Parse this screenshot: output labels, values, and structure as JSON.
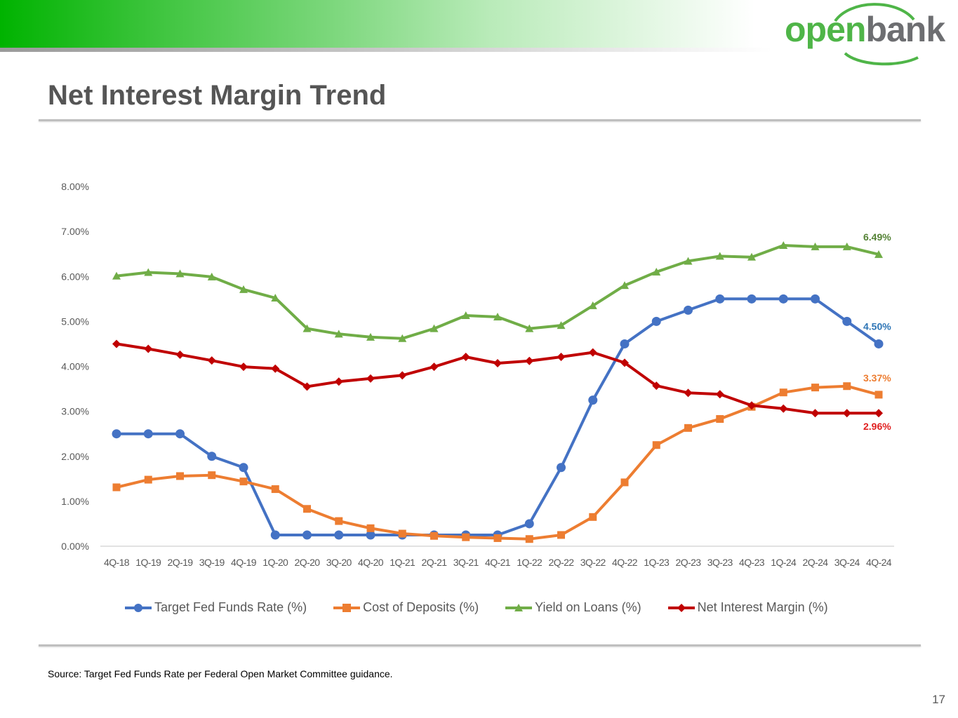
{
  "header": {
    "logo_left": "open",
    "logo_right": "bank",
    "title": "Net Interest Margin Trend"
  },
  "colors": {
    "fed": "#4472c4",
    "deposits": "#ed7d31",
    "loans": "#70ad47",
    "nim": "#c00000",
    "end_label_fed": "#2e75b6",
    "end_label_deposits": "#ed7d31",
    "end_label_loans": "#548235",
    "end_label_nim": "#e02020"
  },
  "chart_data": {
    "type": "line",
    "title": "",
    "xlabel": "",
    "ylabel": "",
    "ylim": [
      0,
      8
    ],
    "y_ticks": [
      "0.00%",
      "1.00%",
      "2.00%",
      "3.00%",
      "4.00%",
      "5.00%",
      "6.00%",
      "7.00%",
      "8.00%"
    ],
    "grid": false,
    "categories": [
      "4Q-18",
      "1Q-19",
      "2Q-19",
      "3Q-19",
      "4Q-19",
      "1Q-20",
      "2Q-20",
      "3Q-20",
      "4Q-20",
      "1Q-21",
      "2Q-21",
      "3Q-21",
      "4Q-21",
      "1Q-22",
      "2Q-22",
      "3Q-22",
      "4Q-22",
      "1Q-23",
      "2Q-23",
      "3Q-23",
      "4Q-23",
      "1Q-24",
      "2Q-24",
      "3Q-24",
      "4Q-24"
    ],
    "series": [
      {
        "name": "Target Fed Funds Rate (%)",
        "key": "fed",
        "marker": "circle",
        "values": [
          2.5,
          2.5,
          2.5,
          2.0,
          1.75,
          0.25,
          0.25,
          0.25,
          0.25,
          0.25,
          0.25,
          0.25,
          0.25,
          0.5,
          1.75,
          3.25,
          4.5,
          5.0,
          5.25,
          5.5,
          5.5,
          5.5,
          5.5,
          5.0,
          4.5
        ],
        "end_label": "4.50%"
      },
      {
        "name": "Cost of Deposits (%)",
        "key": "deposits",
        "marker": "square",
        "values": [
          1.31,
          1.48,
          1.56,
          1.58,
          1.44,
          1.27,
          0.83,
          0.56,
          0.4,
          0.28,
          0.23,
          0.2,
          0.18,
          0.16,
          0.25,
          0.65,
          1.42,
          2.25,
          2.63,
          2.83,
          3.1,
          3.42,
          3.53,
          3.56,
          3.37
        ],
        "end_label": "3.37%"
      },
      {
        "name": "Yield on Loans (%)",
        "key": "loans",
        "marker": "triangle",
        "values": [
          6.01,
          6.09,
          6.06,
          5.99,
          5.71,
          5.52,
          4.84,
          4.72,
          4.65,
          4.62,
          4.84,
          5.13,
          5.1,
          4.84,
          4.91,
          5.35,
          5.8,
          6.1,
          6.34,
          6.45,
          6.43,
          6.69,
          6.66,
          6.66,
          6.49
        ],
        "end_label": "6.49%"
      },
      {
        "name": "Net Interest Margin (%)",
        "key": "nim",
        "marker": "diamond",
        "values": [
          4.5,
          4.39,
          4.26,
          4.13,
          3.99,
          3.95,
          3.55,
          3.66,
          3.73,
          3.8,
          3.99,
          4.21,
          4.07,
          4.12,
          4.21,
          4.31,
          4.08,
          3.57,
          3.41,
          3.38,
          3.13,
          3.06,
          2.96,
          2.96,
          2.96
        ],
        "end_label": "2.96%"
      }
    ],
    "legend_position": "bottom"
  },
  "footer": {
    "source": "Source: Target Fed Funds Rate per Federal Open Market Committee guidance.",
    "page_number": "17"
  }
}
